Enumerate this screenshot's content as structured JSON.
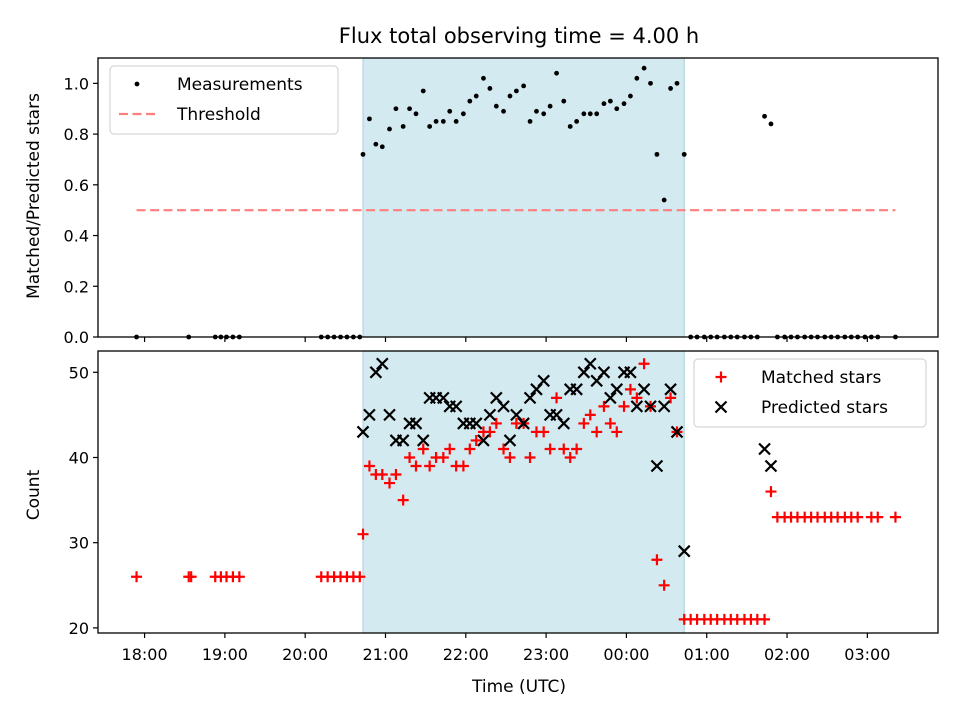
{
  "figure": {
    "title": "Flux total observing time = 4.00 h",
    "xlabel": "Time (UTC)"
  },
  "chart_data": [
    {
      "type": "scatter",
      "panel": "top",
      "ylabel": "Matched/Predicted stars",
      "xlabel": "",
      "xlim": [
        -0.58,
        9.88
      ],
      "ylim": [
        0,
        1.1
      ],
      "yticks": [
        0.0,
        0.2,
        0.4,
        0.6,
        0.8,
        1.0
      ],
      "ytick_labels": [
        "0.0",
        "0.2",
        "0.4",
        "0.6",
        "0.8",
        "1.0"
      ],
      "legend": {
        "placement": "upper-left"
      },
      "shaded_span": {
        "x0": 2.72,
        "x1": 6.72,
        "color": "#d4eaf1"
      },
      "series": [
        {
          "name": "Measurements",
          "kind": "scatter",
          "marker": "dot",
          "color": "#000000",
          "x": [
            -0.1,
            0.55,
            0.88,
            0.95,
            1.02,
            1.1,
            1.18,
            2.2,
            2.28,
            2.36,
            2.44,
            2.52,
            2.6,
            2.68,
            2.72,
            2.8,
            2.88,
            2.96,
            3.05,
            3.13,
            3.22,
            3.3,
            3.38,
            3.47,
            3.55,
            3.63,
            3.72,
            3.8,
            3.88,
            3.97,
            4.05,
            4.13,
            4.22,
            4.3,
            4.38,
            4.47,
            4.55,
            4.63,
            4.72,
            4.8,
            4.88,
            4.97,
            5.05,
            5.13,
            5.22,
            5.3,
            5.38,
            5.47,
            5.55,
            5.63,
            5.72,
            5.8,
            5.88,
            5.97,
            6.05,
            6.13,
            6.22,
            6.3,
            6.38,
            6.47,
            6.55,
            6.63,
            6.72,
            6.8,
            6.88,
            6.97,
            7.05,
            7.13,
            7.22,
            7.3,
            7.38,
            7.47,
            7.55,
            7.63,
            7.72,
            7.8,
            7.88,
            7.97,
            8.05,
            8.13,
            8.22,
            8.3,
            8.38,
            8.47,
            8.55,
            8.63,
            8.72,
            8.8,
            8.88,
            8.97,
            9.05,
            9.13,
            9.35
          ],
          "y": [
            0,
            0,
            0,
            0,
            0,
            0,
            0,
            0,
            0,
            0,
            0,
            0,
            0,
            0,
            0.72,
            0.86,
            0.76,
            0.75,
            0.82,
            0.9,
            0.83,
            0.9,
            0.88,
            0.97,
            0.83,
            0.85,
            0.85,
            0.89,
            0.85,
            0.88,
            0.93,
            0.95,
            1.02,
            0.98,
            0.91,
            0.89,
            0.95,
            0.97,
            0.99,
            0.85,
            0.89,
            0.88,
            0.91,
            1.04,
            0.93,
            0.83,
            0.85,
            0.88,
            0.88,
            0.88,
            0.92,
            0.93,
            0.9,
            0.92,
            0.95,
            1.02,
            1.06,
            1.0,
            0.72,
            0.54,
            0.98,
            1.0,
            0.72,
            0,
            0,
            0,
            0,
            0,
            0,
            0,
            0,
            0,
            0,
            0,
            0.87,
            0.84,
            0,
            0,
            0,
            0,
            0,
            0,
            0,
            0,
            0,
            0,
            0,
            0,
            0,
            0,
            0,
            0,
            0
          ]
        },
        {
          "name": "Threshold",
          "kind": "line",
          "style": "dashed",
          "color": "#ff7f7f",
          "x": [
            -0.1,
            9.35
          ],
          "y": [
            0.5,
            0.5
          ]
        }
      ]
    },
    {
      "type": "scatter",
      "panel": "bottom",
      "ylabel": "Count",
      "xlabel": "Time (UTC)",
      "xlim": [
        -0.58,
        9.88
      ],
      "ylim": [
        19.4,
        52.5
      ],
      "yticks": [
        20,
        30,
        40,
        50
      ],
      "ytick_labels": [
        "20",
        "30",
        "40",
        "50"
      ],
      "xticks": [
        0.0,
        1.0,
        2.0,
        3.0,
        4.0,
        5.0,
        6.0,
        7.0,
        8.0,
        9.0
      ],
      "xtick_labels": [
        "18:00",
        "19:00",
        "20:00",
        "21:00",
        "22:00",
        "23:00",
        "00:00",
        "01:00",
        "02:00",
        "03:00"
      ],
      "legend": {
        "placement": "upper-right"
      },
      "shaded_span": {
        "x0": 2.72,
        "x1": 6.72,
        "color": "#d4eaf1"
      },
      "series": [
        {
          "name": "Matched stars",
          "kind": "scatter",
          "marker": "plus",
          "color": "#ff0000",
          "x": [
            -0.1,
            0.55,
            0.58,
            0.88,
            0.95,
            1.02,
            1.1,
            1.18,
            2.2,
            2.28,
            2.36,
            2.44,
            2.52,
            2.6,
            2.68,
            2.72,
            2.8,
            2.88,
            2.96,
            3.05,
            3.13,
            3.22,
            3.3,
            3.38,
            3.47,
            3.55,
            3.63,
            3.72,
            3.8,
            3.88,
            3.97,
            4.05,
            4.13,
            4.22,
            4.3,
            4.38,
            4.47,
            4.55,
            4.63,
            4.72,
            4.8,
            4.88,
            4.97,
            5.05,
            5.13,
            5.22,
            5.3,
            5.38,
            5.47,
            5.55,
            5.63,
            5.72,
            5.8,
            5.88,
            5.97,
            6.05,
            6.13,
            6.22,
            6.3,
            6.38,
            6.47,
            6.55,
            6.63,
            6.72,
            6.8,
            6.88,
            6.97,
            7.05,
            7.13,
            7.22,
            7.3,
            7.38,
            7.47,
            7.55,
            7.63,
            7.72,
            7.8,
            7.88,
            7.97,
            8.05,
            8.13,
            8.22,
            8.3,
            8.38,
            8.47,
            8.55,
            8.63,
            8.72,
            8.8,
            8.88,
            9.05,
            9.13,
            9.35
          ],
          "y": [
            26,
            26,
            26,
            26,
            26,
            26,
            26,
            26,
            26,
            26,
            26,
            26,
            26,
            26,
            26,
            31,
            39,
            38,
            38,
            37,
            38,
            35,
            40,
            39,
            41,
            39,
            40,
            40,
            41,
            39,
            39,
            41,
            42,
            43,
            43,
            44,
            41,
            40,
            44,
            44,
            40,
            43,
            43,
            41,
            47,
            41,
            40,
            41,
            44,
            45,
            43,
            46,
            44,
            43,
            46,
            48,
            47,
            51,
            46,
            28,
            25,
            47,
            43,
            21,
            21,
            21,
            21,
            21,
            21,
            21,
            21,
            21,
            21,
            21,
            21,
            21,
            36,
            33,
            33,
            33,
            33,
            33,
            33,
            33,
            33,
            33,
            33,
            33,
            33,
            33,
            33,
            33,
            33
          ]
        },
        {
          "name": "Predicted stars",
          "kind": "scatter",
          "marker": "x",
          "color": "#000000",
          "x": [
            2.72,
            2.8,
            2.88,
            2.96,
            3.05,
            3.13,
            3.22,
            3.3,
            3.38,
            3.47,
            3.55,
            3.63,
            3.72,
            3.8,
            3.88,
            3.97,
            4.05,
            4.13,
            4.22,
            4.3,
            4.38,
            4.47,
            4.55,
            4.63,
            4.72,
            4.8,
            4.88,
            4.97,
            5.05,
            5.13,
            5.22,
            5.3,
            5.38,
            5.47,
            5.55,
            5.63,
            5.72,
            5.8,
            5.88,
            5.97,
            6.05,
            6.13,
            6.22,
            6.3,
            6.38,
            6.47,
            6.55,
            6.63,
            6.72,
            7.72,
            7.8
          ],
          "y": [
            43,
            45,
            50,
            51,
            45,
            42,
            42,
            44,
            44,
            42,
            47,
            47,
            47,
            46,
            46,
            44,
            44,
            44,
            42,
            45,
            47,
            46,
            42,
            45,
            44,
            47,
            48,
            49,
            45,
            45,
            44,
            48,
            48,
            50,
            51,
            49,
            50,
            47,
            48,
            50,
            50,
            46,
            48,
            46,
            39,
            46,
            48,
            43,
            29,
            41,
            39
          ]
        }
      ]
    }
  ]
}
